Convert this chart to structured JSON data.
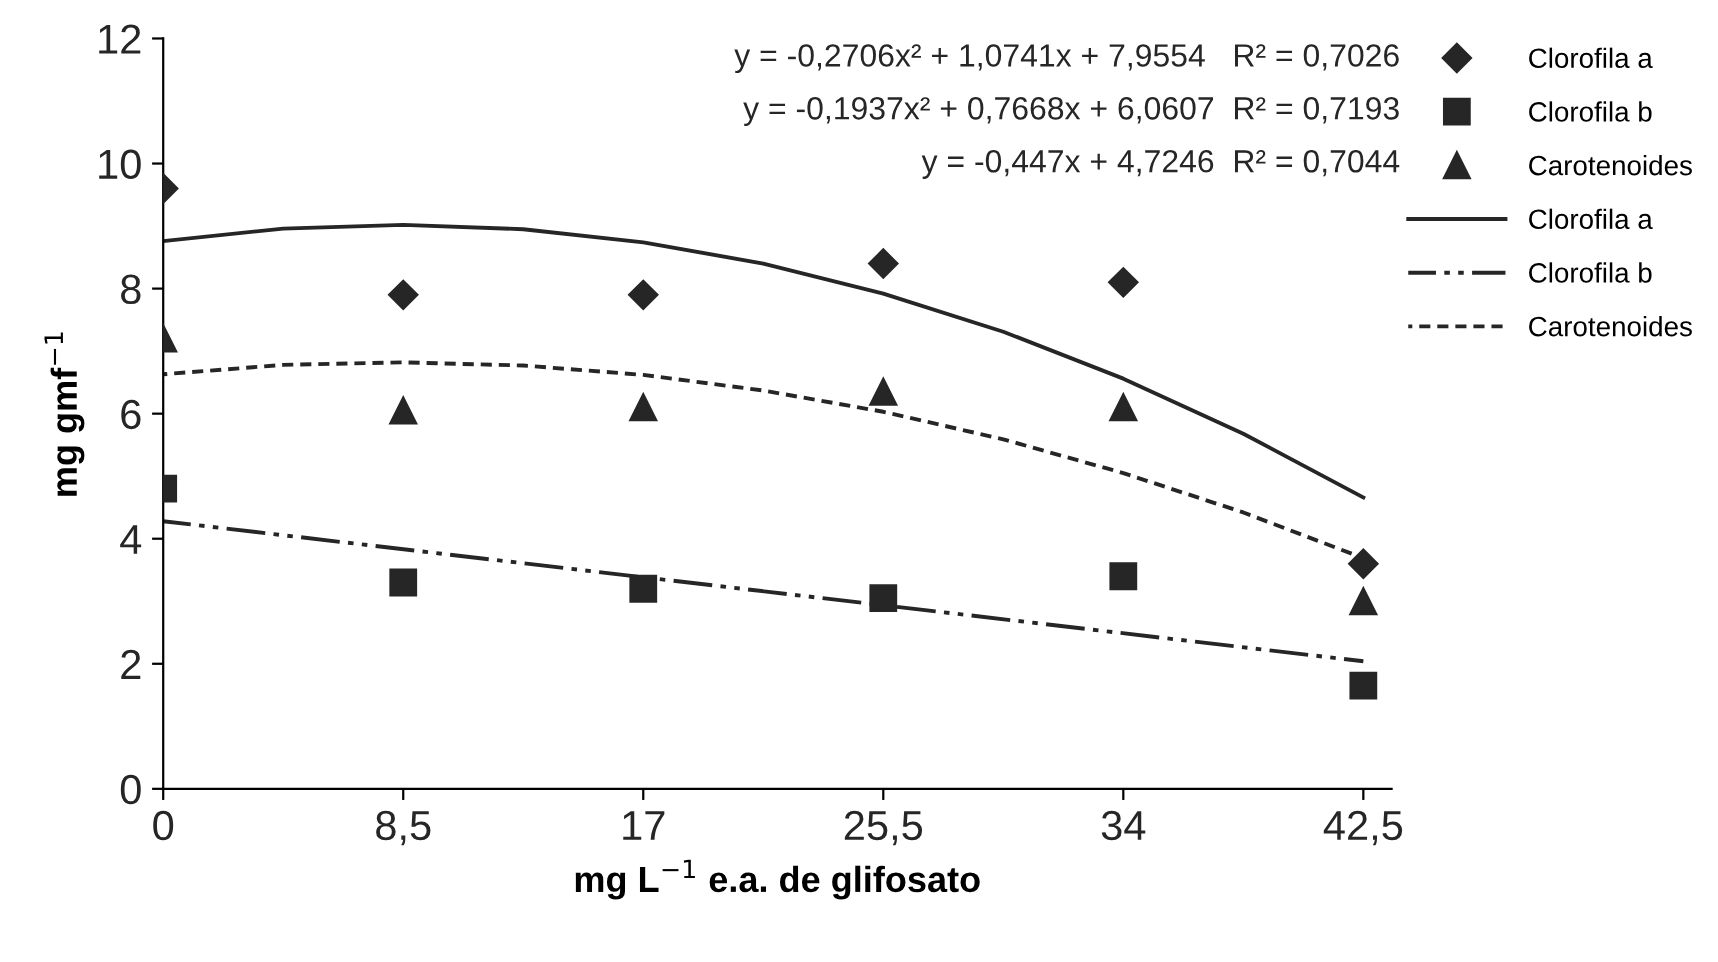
{
  "chart_data": {
    "type": "scatter",
    "xlabel": "mg L$^{−1}$ e.a. de glifosato",
    "ylabel": "mg gmf$^{−1}$",
    "xlim": [
      0,
      43.5
    ],
    "xticks": [
      0,
      {
        "value": 8.5,
        "label": "8,5"
      },
      17,
      {
        "value": 25.5,
        "label": "25,5"
      },
      34,
      {
        "value": 42.5,
        "label": "42,5"
      }
    ],
    "ylim": [
      0,
      12
    ],
    "yticks": [
      0,
      2,
      4,
      6,
      8,
      10,
      12
    ],
    "grid": false,
    "legend": "right",
    "annotations": [
      "y = -0,2706x² + 1,0741x + 7,9554   R² = 0,7026",
      "y = -0,1937x² + 0,7668x + 6,0607  R² = 0,7193",
      "y = -0,447x + 4,7246  R² = 0,7044"
    ],
    "series": [
      {
        "name": "Clorofila a",
        "marker": "diamond",
        "color": "#262626",
        "x": [
          0,
          8.5,
          17,
          25.5,
          34,
          42.5
        ],
        "values": [
          9.6,
          7.9,
          7.9,
          8.4,
          8.1,
          3.6
        ]
      },
      {
        "name": "Clorofila b",
        "marker": "square",
        "color": "#262626",
        "x": [
          0,
          8.5,
          17,
          25.5,
          34,
          42.5
        ],
        "values": [
          4.8,
          3.3,
          3.2,
          3.05,
          3.4,
          1.65
        ]
      },
      {
        "name": "Carotenoides",
        "marker": "triangle",
        "color": "#262626",
        "x": [
          0,
          8.5,
          17,
          25.5,
          34,
          42.5
        ],
        "values": [
          7.2,
          6.05,
          6.1,
          6.35,
          6.1,
          3.0
        ]
      },
      {
        "name": "Clorofila a",
        "type": "line",
        "line_style": "solid",
        "color": "#262626",
        "x": [
          0,
          4.25,
          8.5,
          12.75,
          17,
          21.25,
          25.5,
          29.75,
          34,
          38.25,
          42.5
        ],
        "values": [
          8.76,
          8.96,
          9.02,
          8.95,
          8.74,
          8.4,
          7.92,
          7.31,
          6.56,
          5.68,
          4.66
        ]
      },
      {
        "name": "Clorofila b",
        "type": "line",
        "line_style": "dashed",
        "color": "#262626",
        "x": [
          0,
          42.5
        ],
        "values": [
          4.28,
          2.04
        ]
      },
      {
        "name": "Carotenoides",
        "type": "line",
        "line_style": "dotted",
        "color": "#262626",
        "x": [
          0,
          4.25,
          8.5,
          12.75,
          17,
          21.25,
          25.5,
          29.75,
          34,
          38.25,
          42.5
        ],
        "values": [
          6.63,
          6.78,
          6.82,
          6.77,
          6.62,
          6.37,
          6.03,
          5.59,
          5.05,
          4.42,
          3.69
        ]
      }
    ]
  }
}
